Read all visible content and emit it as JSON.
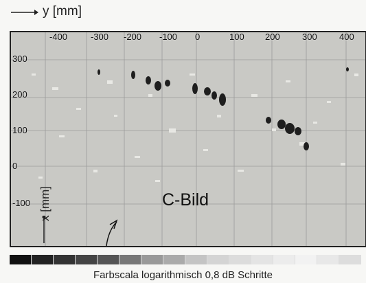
{
  "header": {
    "y_axis_title": "y [mm]"
  },
  "plot": {
    "y_ticks": [
      "-400",
      "-300",
      "-200",
      "-100",
      "0",
      "100",
      "200",
      "300",
      "400"
    ],
    "x_ticks": [
      "300",
      "200",
      "100",
      "0",
      "-100"
    ],
    "x_axis_title": "x [mm]",
    "label": "C-Bild"
  },
  "scale": {
    "colors": [
      "#111111",
      "#222222",
      "#333333",
      "#444444",
      "#555555",
      "#777777",
      "#999999",
      "#aaaaaa",
      "#c4c4c4",
      "#d4d4d4",
      "#dcdcdc",
      "#e4e4e4",
      "#ececec",
      "#f2f2f2",
      "#e8e8e8",
      "#dddddd"
    ],
    "caption": "Farbscala logarithmisch 0,8 dB Schritte"
  }
}
